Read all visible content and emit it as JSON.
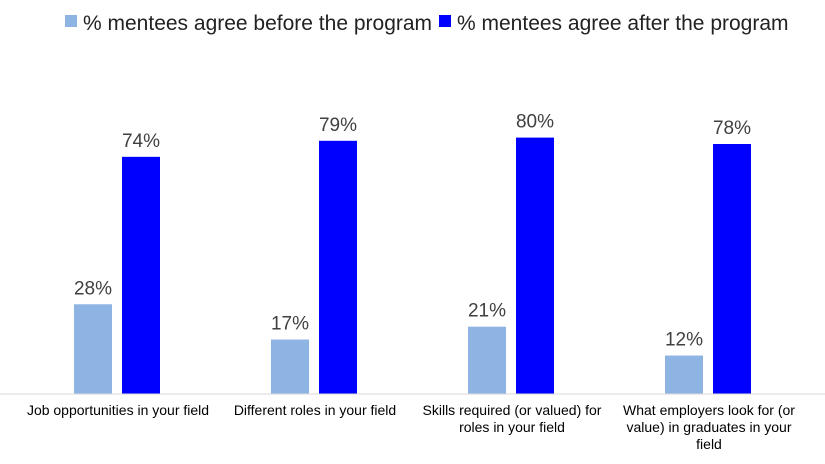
{
  "chart_data": {
    "type": "bar",
    "title": "",
    "xlabel": "",
    "ylabel": "",
    "ylim": [
      0,
      100
    ],
    "grid": false,
    "legend_position": "top",
    "value_suffix": "%",
    "categories": [
      [
        "Job opportunities in your field"
      ],
      [
        "Different roles in your field"
      ],
      [
        "Skills required (or valued) for",
        "roles in your field"
      ],
      [
        "What employers look for (or",
        "value) in graduates in your",
        "field"
      ]
    ],
    "series": [
      {
        "name": "% mentees agree before the program",
        "color": "#8DB4E2",
        "values": [
          28,
          17,
          21,
          12
        ]
      },
      {
        "name": "% mentees agree after the program",
        "color": "#0000FF",
        "values": [
          74,
          79,
          80,
          78
        ]
      }
    ]
  }
}
